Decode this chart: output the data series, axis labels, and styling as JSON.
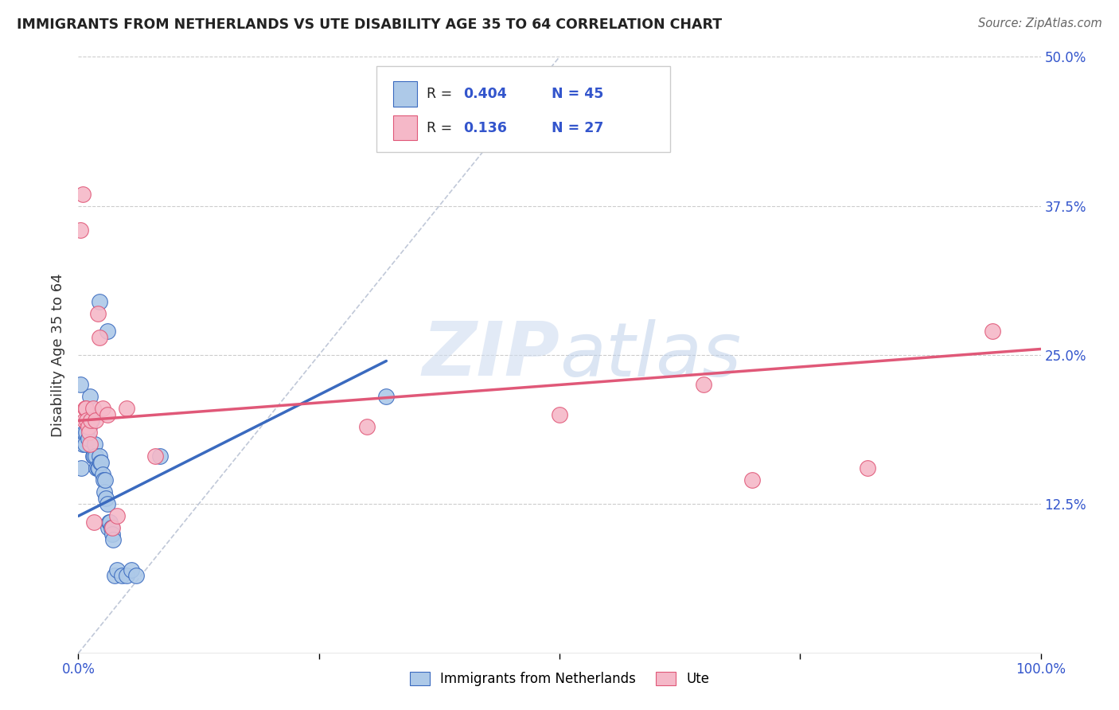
{
  "title": "IMMIGRANTS FROM NETHERLANDS VS UTE DISABILITY AGE 35 TO 64 CORRELATION CHART",
  "source": "Source: ZipAtlas.com",
  "ylabel": "Disability Age 35 to 64",
  "legend_label1": "Immigrants from Netherlands",
  "legend_label2": "Ute",
  "R1": 0.404,
  "N1": 45,
  "R2": 0.136,
  "N2": 27,
  "color1": "#adc9e8",
  "color2": "#f5b8c8",
  "line_color1": "#3a6abf",
  "line_color2": "#e05878",
  "xlim": [
    0,
    1.0
  ],
  "ylim": [
    0,
    0.5
  ],
  "ytick_labels": [
    "12.5%",
    "25.0%",
    "37.5%",
    "50.0%"
  ],
  "yticks": [
    0.125,
    0.25,
    0.375,
    0.5
  ],
  "watermark": "ZIPatlas",
  "blue_points": [
    [
      0.003,
      0.155
    ],
    [
      0.004,
      0.18
    ],
    [
      0.005,
      0.175
    ],
    [
      0.006,
      0.185
    ],
    [
      0.007,
      0.175
    ],
    [
      0.008,
      0.185
    ],
    [
      0.009,
      0.195
    ],
    [
      0.01,
      0.18
    ],
    [
      0.011,
      0.19
    ],
    [
      0.012,
      0.215
    ],
    [
      0.013,
      0.2
    ],
    [
      0.014,
      0.195
    ],
    [
      0.015,
      0.165
    ],
    [
      0.016,
      0.165
    ],
    [
      0.017,
      0.175
    ],
    [
      0.018,
      0.165
    ],
    [
      0.019,
      0.155
    ],
    [
      0.02,
      0.155
    ],
    [
      0.021,
      0.155
    ],
    [
      0.022,
      0.165
    ],
    [
      0.023,
      0.16
    ],
    [
      0.024,
      0.16
    ],
    [
      0.025,
      0.15
    ],
    [
      0.026,
      0.145
    ],
    [
      0.027,
      0.135
    ],
    [
      0.028,
      0.145
    ],
    [
      0.029,
      0.13
    ],
    [
      0.03,
      0.125
    ],
    [
      0.031,
      0.105
    ],
    [
      0.032,
      0.11
    ],
    [
      0.033,
      0.11
    ],
    [
      0.034,
      0.105
    ],
    [
      0.035,
      0.1
    ],
    [
      0.036,
      0.095
    ],
    [
      0.038,
      0.065
    ],
    [
      0.04,
      0.07
    ],
    [
      0.045,
      0.065
    ],
    [
      0.05,
      0.065
    ],
    [
      0.055,
      0.07
    ],
    [
      0.06,
      0.065
    ],
    [
      0.022,
      0.295
    ],
    [
      0.03,
      0.27
    ],
    [
      0.085,
      0.165
    ],
    [
      0.002,
      0.225
    ],
    [
      0.32,
      0.215
    ]
  ],
  "pink_points": [
    [
      0.002,
      0.355
    ],
    [
      0.005,
      0.385
    ],
    [
      0.006,
      0.195
    ],
    [
      0.007,
      0.205
    ],
    [
      0.008,
      0.205
    ],
    [
      0.009,
      0.195
    ],
    [
      0.01,
      0.19
    ],
    [
      0.011,
      0.185
    ],
    [
      0.012,
      0.175
    ],
    [
      0.013,
      0.195
    ],
    [
      0.015,
      0.205
    ],
    [
      0.016,
      0.11
    ],
    [
      0.018,
      0.195
    ],
    [
      0.02,
      0.285
    ],
    [
      0.022,
      0.265
    ],
    [
      0.025,
      0.205
    ],
    [
      0.03,
      0.2
    ],
    [
      0.035,
      0.105
    ],
    [
      0.04,
      0.115
    ],
    [
      0.05,
      0.205
    ],
    [
      0.5,
      0.2
    ],
    [
      0.65,
      0.225
    ],
    [
      0.82,
      0.155
    ],
    [
      0.95,
      0.27
    ],
    [
      0.7,
      0.145
    ],
    [
      0.3,
      0.19
    ],
    [
      0.08,
      0.165
    ]
  ],
  "blue_line": [
    [
      0.0,
      0.115
    ],
    [
      0.32,
      0.245
    ]
  ],
  "pink_line": [
    [
      0.0,
      0.195
    ],
    [
      1.0,
      0.255
    ]
  ],
  "diag_line": [
    [
      0.0,
      0.0
    ],
    [
      0.5,
      0.5
    ]
  ]
}
